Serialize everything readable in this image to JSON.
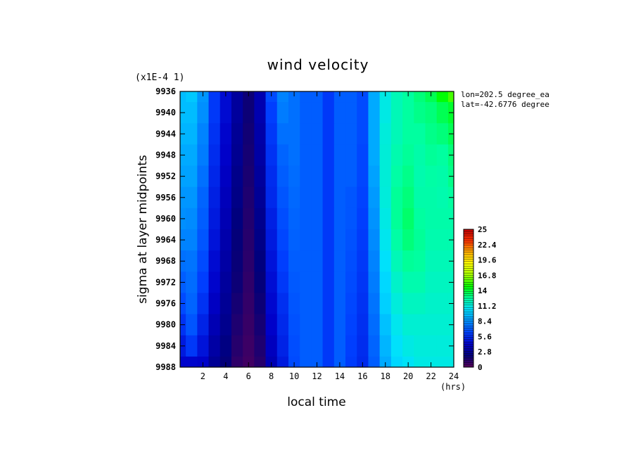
{
  "chart_data": {
    "type": "heatmap",
    "title": "wind velocity",
    "xlabel": "local time",
    "ylabel": "sigma at layer midpoints",
    "x_unit": "(hrs)",
    "y_scale_note": "(x1E-4 1)",
    "info": [
      "lon=202.5 degree_ea",
      "lat=-42.6776 degree"
    ],
    "xlim": [
      0,
      24
    ],
    "ylim": [
      9988,
      9936
    ],
    "x_ticks": [
      2,
      4,
      6,
      8,
      10,
      12,
      14,
      16,
      18,
      20,
      22,
      24
    ],
    "y_ticks": [
      9936,
      9940,
      9944,
      9948,
      9952,
      9956,
      9960,
      9964,
      9968,
      9972,
      9976,
      9980,
      9984,
      9988
    ],
    "colorbar": {
      "min": 0,
      "max": 25,
      "labels": [
        "0",
        "2.8",
        "5.6",
        "8.4",
        "11.2",
        "14",
        "16.8",
        "19.6",
        "22.4",
        "25"
      ],
      "colors": [
        "#5a005a",
        "#00007a",
        "#0000c8",
        "#0040ff",
        "#0090ff",
        "#00e0ff",
        "#00ffa0",
        "#00ff00",
        "#a0ff00",
        "#ffff00",
        "#ffb000",
        "#ff3000",
        "#c00000"
      ]
    },
    "x": [
      0,
      1,
      2,
      3,
      4,
      5,
      6,
      7,
      8,
      9,
      10,
      11,
      12,
      13,
      14,
      15,
      16,
      17,
      18,
      19,
      20,
      21,
      22,
      23,
      24
    ],
    "y": [
      9936,
      9940,
      9944,
      9948,
      9952,
      9956,
      9960,
      9964,
      9968,
      9972,
      9976,
      9980,
      9984,
      9988
    ],
    "z": [
      [
        9.5,
        9.8,
        8.5,
        6.0,
        4.5,
        3.0,
        1.8,
        3.5,
        6.5,
        8.0,
        7.5,
        7.0,
        7.0,
        6.0,
        7.0,
        7.0,
        6.5,
        9.0,
        11.0,
        12.0,
        12.5,
        13.0,
        13.5,
        14.5,
        15.5
      ],
      [
        9.5,
        9.5,
        8.3,
        6.0,
        4.5,
        3.0,
        1.8,
        3.5,
        6.2,
        7.8,
        7.5,
        7.0,
        7.0,
        6.0,
        7.0,
        7.0,
        6.5,
        9.0,
        11.0,
        12.0,
        12.5,
        12.8,
        13.0,
        13.5,
        14.0
      ],
      [
        9.3,
        9.3,
        8.0,
        5.8,
        4.3,
        2.8,
        1.7,
        3.3,
        6.0,
        7.5,
        7.5,
        7.0,
        7.0,
        6.0,
        7.0,
        7.0,
        6.5,
        9.0,
        11.2,
        12.0,
        12.5,
        12.5,
        12.8,
        13.0,
        13.5
      ],
      [
        9.0,
        9.0,
        7.8,
        5.6,
        4.2,
        2.7,
        1.6,
        3.2,
        5.8,
        7.2,
        7.5,
        7.0,
        7.0,
        6.0,
        7.0,
        7.0,
        6.4,
        9.0,
        11.3,
        12.2,
        12.6,
        12.3,
        12.6,
        12.5,
        13.0
      ],
      [
        8.8,
        8.8,
        7.5,
        5.4,
        4.0,
        2.5,
        1.5,
        3.0,
        5.6,
        7.0,
        7.4,
        7.0,
        7.0,
        6.0,
        7.0,
        7.0,
        6.4,
        8.8,
        11.3,
        12.4,
        12.8,
        12.2,
        12.4,
        12.3,
        12.8
      ],
      [
        8.5,
        8.5,
        7.2,
        5.2,
        3.8,
        2.4,
        1.4,
        2.8,
        5.5,
        6.8,
        7.3,
        7.0,
        7.0,
        6.0,
        7.0,
        6.8,
        6.3,
        8.6,
        11.2,
        12.6,
        13.0,
        12.3,
        12.3,
        12.2,
        12.5
      ],
      [
        8.3,
        8.2,
        7.0,
        5.0,
        3.6,
        2.2,
        1.3,
        2.6,
        5.2,
        6.6,
        7.2,
        7.0,
        7.0,
        6.0,
        7.0,
        6.8,
        6.2,
        8.4,
        11.0,
        12.6,
        13.2,
        12.5,
        12.3,
        12.3,
        12.3
      ],
      [
        8.0,
        8.0,
        6.8,
        4.8,
        3.4,
        2.0,
        1.2,
        2.4,
        5.0,
        6.4,
        7.1,
        7.0,
        7.0,
        6.0,
        7.0,
        6.7,
        6.1,
        8.2,
        10.8,
        12.4,
        13.0,
        12.6,
        12.2,
        12.2,
        12.2
      ],
      [
        7.5,
        7.6,
        6.5,
        4.5,
        3.2,
        1.9,
        1.1,
        2.2,
        4.8,
        6.2,
        7.0,
        7.0,
        7.0,
        6.0,
        7.0,
        6.6,
        6.0,
        8.0,
        10.5,
        12.0,
        12.6,
        12.5,
        12.0,
        12.0,
        12.0
      ],
      [
        7.0,
        7.4,
        6.2,
        4.3,
        3.0,
        1.8,
        1.0,
        2.0,
        4.6,
        6.0,
        6.9,
        7.0,
        7.0,
        6.0,
        7.0,
        6.5,
        5.9,
        7.8,
        10.2,
        11.6,
        12.2,
        12.2,
        11.8,
        11.8,
        11.8
      ],
      [
        6.5,
        7.2,
        5.8,
        4.0,
        2.8,
        1.6,
        0.9,
        1.8,
        4.4,
        5.7,
        6.8,
        7.0,
        7.0,
        6.0,
        7.0,
        6.4,
        5.8,
        7.6,
        10.0,
        11.2,
        11.8,
        11.8,
        11.6,
        11.6,
        11.6
      ],
      [
        5.8,
        6.8,
        5.3,
        3.6,
        2.6,
        1.4,
        0.8,
        1.6,
        4.2,
        5.5,
        6.7,
        7.0,
        7.0,
        6.0,
        7.0,
        6.3,
        5.7,
        7.4,
        9.6,
        10.8,
        11.4,
        11.4,
        11.4,
        11.4,
        11.4
      ],
      [
        5.0,
        6.0,
        4.8,
        3.2,
        2.3,
        1.2,
        0.7,
        1.4,
        3.9,
        5.3,
        6.6,
        7.0,
        7.0,
        6.0,
        7.0,
        6.2,
        5.6,
        7.2,
        9.3,
        10.5,
        11.0,
        11.2,
        11.2,
        11.2,
        11.2
      ],
      [
        4.3,
        4.3,
        4.2,
        2.8,
        2.0,
        1.0,
        0.6,
        1.2,
        3.6,
        5.0,
        6.5,
        7.0,
        7.0,
        6.0,
        7.0,
        6.1,
        5.5,
        7.0,
        9.0,
        10.2,
        10.6,
        11.0,
        11.0,
        11.0,
        11.0
      ]
    ]
  }
}
